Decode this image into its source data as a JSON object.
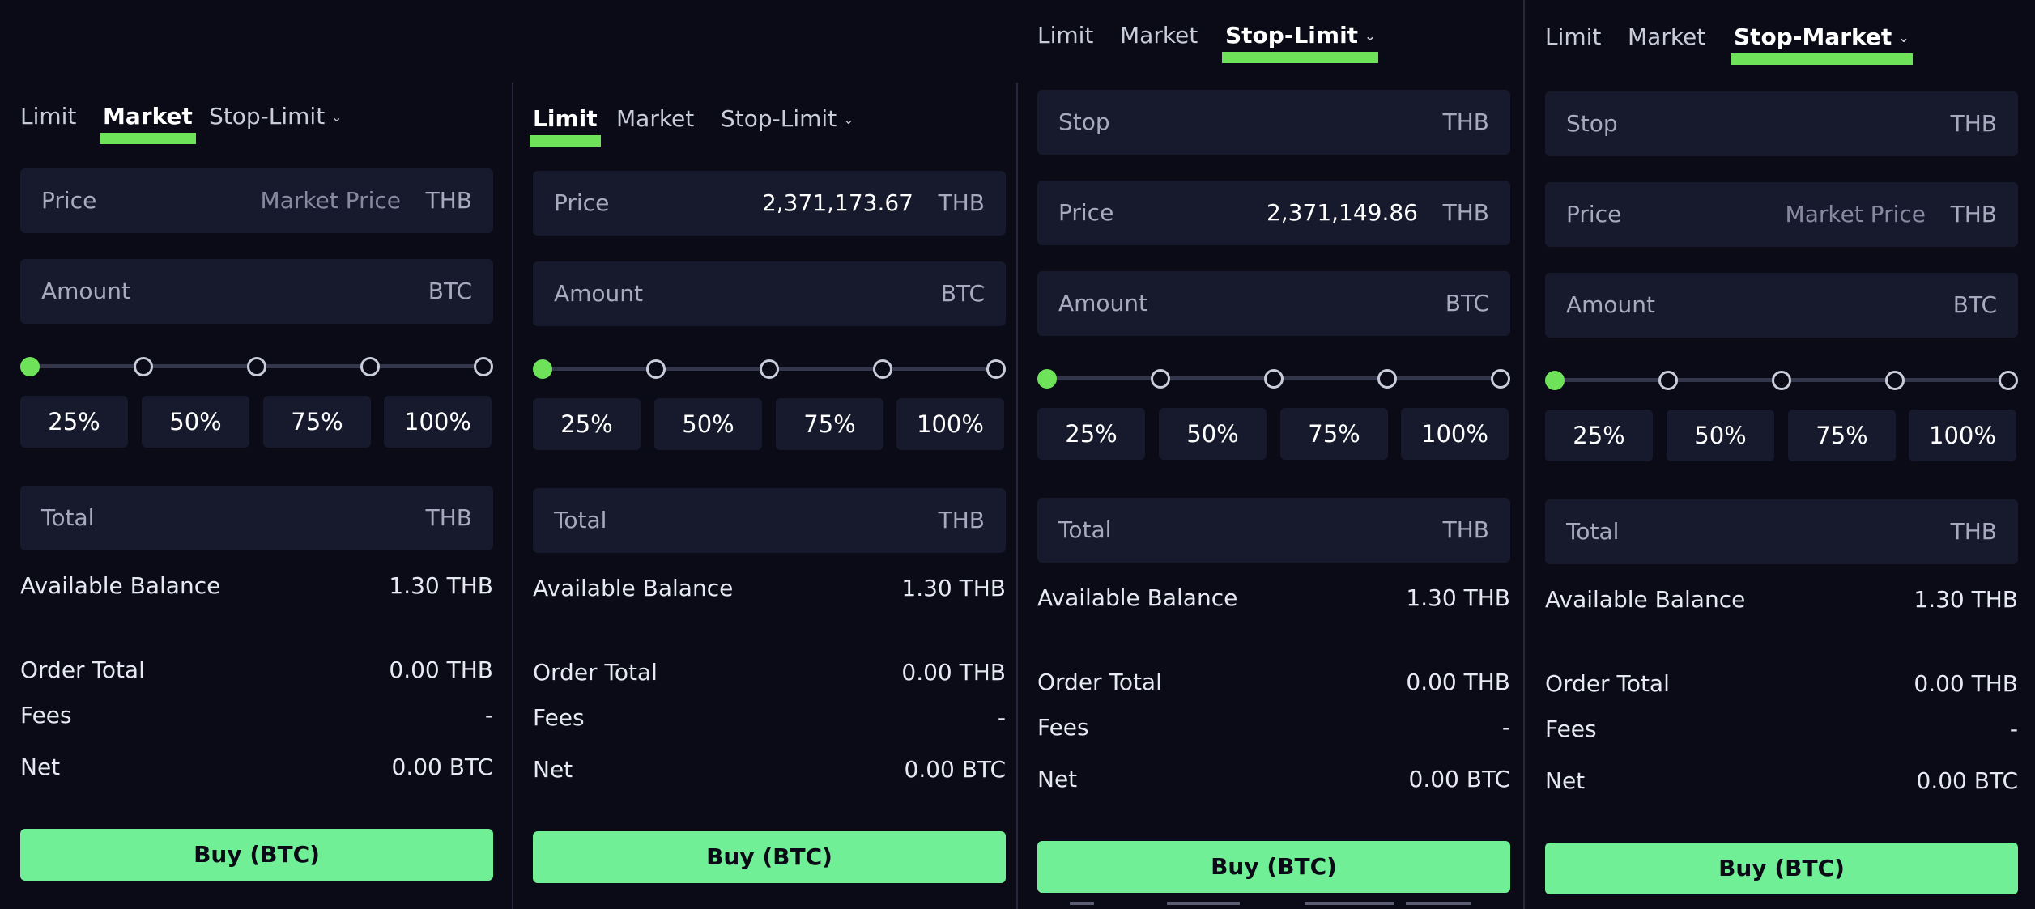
{
  "colors": {
    "background": "#0a0b16",
    "field": "#171a2d",
    "accent_tab": "#6ee35a",
    "buy_button": "#71ef97",
    "divider": "#25273a"
  },
  "icons": {
    "dropdown": "chevron-down-icon"
  },
  "panels": [
    {
      "tabs": [
        "Limit",
        "Market",
        "Stop-Limit"
      ],
      "active_tab": "Market",
      "stop": null,
      "price": {
        "label": "Price",
        "value": "Market Price",
        "unit": "THB"
      },
      "amount": {
        "label": "Amount",
        "unit": "BTC"
      },
      "slider_level": 0,
      "percents": [
        "25%",
        "50%",
        "75%",
        "100%"
      ],
      "total": {
        "label": "Total",
        "unit": "THB"
      },
      "available_balance": {
        "label": "Available Balance",
        "value": "1.30 THB"
      },
      "order_total": {
        "label": "Order Total",
        "value": "0.00 THB"
      },
      "fees": {
        "label": "Fees",
        "value": "-"
      },
      "net": {
        "label": "Net",
        "value": "0.00 BTC"
      },
      "buy_label": "Buy (BTC)"
    },
    {
      "tabs": [
        "Limit",
        "Market",
        "Stop-Limit"
      ],
      "active_tab": "Limit",
      "stop": null,
      "price": {
        "label": "Price",
        "value": "2,371,173.67",
        "unit": "THB"
      },
      "amount": {
        "label": "Amount",
        "unit": "BTC"
      },
      "slider_level": 0,
      "percents": [
        "25%",
        "50%",
        "75%",
        "100%"
      ],
      "total": {
        "label": "Total",
        "unit": "THB"
      },
      "available_balance": {
        "label": "Available Balance",
        "value": "1.30 THB"
      },
      "order_total": {
        "label": "Order Total",
        "value": "0.00 THB"
      },
      "fees": {
        "label": "Fees",
        "value": "-"
      },
      "net": {
        "label": "Net",
        "value": "0.00 BTC"
      },
      "buy_label": "Buy (BTC)"
    },
    {
      "tabs": [
        "Limit",
        "Market",
        "Stop-Limit"
      ],
      "active_tab": "Stop-Limit",
      "stop": {
        "label": "Stop",
        "unit": "THB"
      },
      "price": {
        "label": "Price",
        "value": "2,371,149.86",
        "unit": "THB"
      },
      "amount": {
        "label": "Amount",
        "unit": "BTC"
      },
      "slider_level": 0,
      "percents": [
        "25%",
        "50%",
        "75%",
        "100%"
      ],
      "total": {
        "label": "Total",
        "unit": "THB"
      },
      "available_balance": {
        "label": "Available Balance",
        "value": "1.30 THB"
      },
      "order_total": {
        "label": "Order Total",
        "value": "0.00 THB"
      },
      "fees": {
        "label": "Fees",
        "value": "-"
      },
      "net": {
        "label": "Net",
        "value": "0.00 BTC"
      },
      "buy_label": "Buy (BTC)"
    },
    {
      "tabs": [
        "Limit",
        "Market",
        "Stop-Market"
      ],
      "active_tab": "Stop-Market",
      "stop": {
        "label": "Stop",
        "unit": "THB"
      },
      "price": {
        "label": "Price",
        "value": "Market Price",
        "unit": "THB"
      },
      "amount": {
        "label": "Amount",
        "unit": "BTC"
      },
      "slider_level": 0,
      "percents": [
        "25%",
        "50%",
        "75%",
        "100%"
      ],
      "total": {
        "label": "Total",
        "unit": "THB"
      },
      "available_balance": {
        "label": "Available Balance",
        "value": "1.30 THB"
      },
      "order_total": {
        "label": "Order Total",
        "value": "0.00 THB"
      },
      "fees": {
        "label": "Fees",
        "value": "-"
      },
      "net": {
        "label": "Net",
        "value": "0.00 BTC"
      },
      "buy_label": "Buy (BTC)"
    }
  ]
}
